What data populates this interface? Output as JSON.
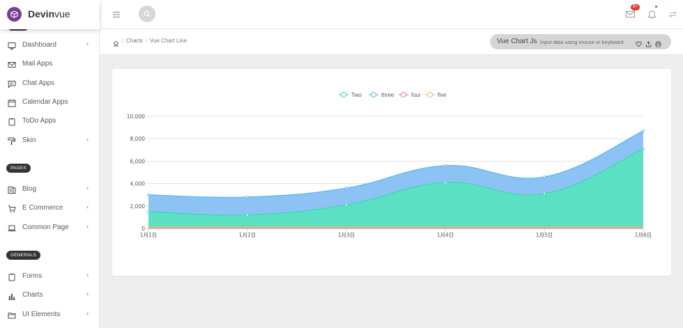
{
  "brand": {
    "name_bold": "Devin",
    "name_light": "vue"
  },
  "header": {
    "mail_badge": "9+"
  },
  "sidebar": {
    "items": [
      {
        "label": "Dashboard",
        "icon": "monitor-icon",
        "arrow": true
      },
      {
        "label": "Mail Apps",
        "icon": "mail-icon",
        "arrow": false
      },
      {
        "label": "Chat Apps",
        "icon": "chat-icon",
        "arrow": false
      },
      {
        "label": "Calendar Apps",
        "icon": "calendar-icon",
        "arrow": false
      },
      {
        "label": "ToDo Apps",
        "icon": "clipboard-icon",
        "arrow": false
      },
      {
        "label": "Skin",
        "icon": "paint-roller-icon",
        "arrow": true
      }
    ],
    "section_pages": "PAGES",
    "pages_items": [
      {
        "label": "Blog",
        "icon": "blog-icon",
        "arrow": true
      },
      {
        "label": "E Commerce",
        "icon": "cart-icon",
        "arrow": true
      },
      {
        "label": "Common Page",
        "icon": "laptop-icon",
        "arrow": true
      }
    ],
    "section_generals": "GENERALS",
    "generals_items": [
      {
        "label": "Forms",
        "icon": "clipboard-icon",
        "arrow": true
      },
      {
        "label": "Charts",
        "icon": "bar-chart-icon",
        "arrow": true
      },
      {
        "label": "UI Elements",
        "icon": "folder-icon",
        "arrow": true
      }
    ]
  },
  "breadcrumb": {
    "items": [
      "Charts",
      "Vue Chart Line"
    ],
    "separator": "/"
  },
  "info_pill": {
    "title": "Vue Chart Js",
    "subtitle": "Input data using mouse or keyboard"
  },
  "chart_data": {
    "type": "area",
    "x": [
      "1月1日",
      "1月2日",
      "1月3日",
      "1月4日",
      "1月5日",
      "1月6日"
    ],
    "ylim": [
      0,
      10000
    ],
    "yticks": [
      "0",
      "2,000",
      "4,000",
      "6,000",
      "8,000",
      "10,000"
    ],
    "legend_position": "top-center",
    "grid": true,
    "series": [
      {
        "name": "Two",
        "color": "#3dd6b0",
        "values": [
          1500,
          1200,
          2100,
          4100,
          3100,
          7100
        ]
      },
      {
        "name": "three",
        "color": "#5ab4f2",
        "values": [
          1500,
          1600,
          1500,
          1500,
          1500,
          1600
        ]
      },
      {
        "name": "four",
        "color": "#f07a8c",
        "values": [
          0,
          0,
          0,
          0,
          0,
          0
        ]
      },
      {
        "name": "five",
        "color": "#f5b46a",
        "values": [
          100,
          100,
          100,
          100,
          100,
          100
        ]
      }
    ]
  }
}
